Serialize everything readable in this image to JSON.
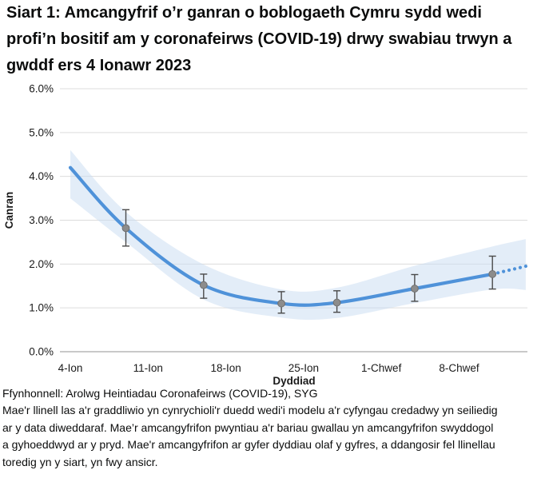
{
  "chart_data": {
    "type": "line",
    "title": "Siart 1: Amcangyfrif o’r ganran o boblogaeth Cymru sydd wedi profi’n bositif am y coronafeirws (COVID-19) drwy swabiau trwyn a gwddf ers 4 Ionawr 2023",
    "xlabel": "Dyddiad",
    "ylabel": "Canran",
    "ylim": [
      0,
      6
    ],
    "ytick_labels": [
      "0.0%",
      "1.0%",
      "2.0%",
      "3.0%",
      "4.0%",
      "5.0%",
      "6.0%"
    ],
    "xticks": [
      {
        "day": 0,
        "label": "4-Ion"
      },
      {
        "day": 7,
        "label": "11-Ion"
      },
      {
        "day": 14,
        "label": "18-Ion"
      },
      {
        "day": 21,
        "label": "25-Ion"
      },
      {
        "day": 28,
        "label": "1-Chwef"
      },
      {
        "day": 35,
        "label": "8-Chwef"
      }
    ],
    "grid": "horizontal-only",
    "legend": "none",
    "series": [
      {
        "name": "modelled-trend",
        "style": "smooth-line",
        "x_days": [
          0,
          5,
          12,
          19,
          24,
          31,
          38
        ],
        "values": [
          4.2,
          2.82,
          1.52,
          1.1,
          1.12,
          1.44,
          1.77
        ],
        "dotted_extension": {
          "x_days": [
            38,
            41
          ],
          "values": [
            1.77,
            1.95
          ],
          "dots": 6
        }
      },
      {
        "name": "credible-interval-band",
        "style": "band",
        "x_days": [
          0,
          5,
          12,
          19,
          24,
          31,
          38,
          41
        ],
        "upper": [
          4.6,
          3.19,
          1.99,
          1.42,
          1.46,
          1.96,
          2.4,
          2.57
        ],
        "lower": [
          3.5,
          2.5,
          1.19,
          0.78,
          0.77,
          1.11,
          1.42,
          1.41
        ]
      },
      {
        "name": "official-estimates",
        "style": "points-with-error-bars",
        "points": [
          {
            "date": "9-Ion",
            "day": 5,
            "value": 2.82,
            "lower": 2.41,
            "upper": 3.24
          },
          {
            "date": "16-Ion",
            "day": 12,
            "value": 1.52,
            "lower": 1.22,
            "upper": 1.77
          },
          {
            "date": "23-Ion",
            "day": 19,
            "value": 1.1,
            "lower": 0.88,
            "upper": 1.37
          },
          {
            "date": "28-Ion",
            "day": 24,
            "value": 1.12,
            "lower": 0.9,
            "upper": 1.39
          },
          {
            "date": "4-Chwef",
            "day": 31,
            "value": 1.44,
            "lower": 1.15,
            "upper": 1.76
          },
          {
            "date": "11-Chwef",
            "day": 38,
            "value": 1.77,
            "lower": 1.43,
            "upper": 2.18
          }
        ]
      }
    ],
    "colors": {
      "trend_line": "#4f92d9",
      "credible_band": "#c7dbf1",
      "point": "#8c8c8c",
      "error_bar": "#4a4a4a",
      "gridline": "#dcdcdc",
      "axis_line": "#a9a9a9",
      "text": "#1a1a1a",
      "title_text": "#0b0c0c"
    }
  },
  "footer": {
    "source": "Ffynhonnell: Arolwg Heintiadau Coronafeirws (COVID-19), SYG",
    "note_lines": [
      "Mae'r llinell las a'r graddliwio yn cynrychioli'r duedd wedi'i modelu a'r cyfyngau credadwy yn seiliedig",
      "ar y data diweddaraf. Mae’r amcangyfrifon pwyntiau a'r bariau gwallau yn amcangyfrifon swyddogol",
      "a gyhoeddwyd ar y pryd. Mae'r amcangyfrifon ar gyfer dyddiau olaf y gyfres, a ddangosir fel llinellau",
      "toredig yn y siart, yn fwy ansicr."
    ]
  }
}
